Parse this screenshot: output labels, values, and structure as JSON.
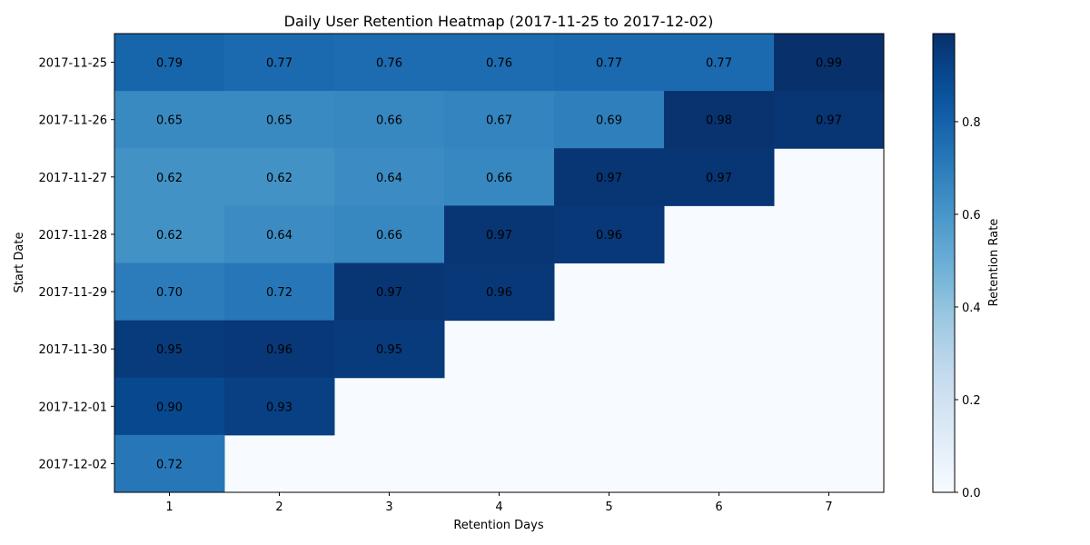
{
  "chart_data": {
    "type": "heatmap",
    "title": "Daily User Retention Heatmap (2017-11-25 to 2017-12-02)",
    "xlabel": "Retention Days",
    "ylabel": "Start Date",
    "x_categories": [
      "1",
      "2",
      "3",
      "4",
      "5",
      "6",
      "7"
    ],
    "y_categories": [
      "2017-11-25",
      "2017-11-26",
      "2017-11-27",
      "2017-11-28",
      "2017-11-29",
      "2017-11-30",
      "2017-12-01",
      "2017-12-02"
    ],
    "values": [
      [
        0.79,
        0.77,
        0.76,
        0.76,
        0.77,
        0.77,
        0.99
      ],
      [
        0.65,
        0.65,
        0.66,
        0.67,
        0.69,
        0.98,
        0.97
      ],
      [
        0.62,
        0.62,
        0.64,
        0.66,
        0.97,
        0.97,
        null
      ],
      [
        0.62,
        0.64,
        0.66,
        0.97,
        0.96,
        null,
        null
      ],
      [
        0.7,
        0.72,
        0.97,
        0.96,
        null,
        null,
        null
      ],
      [
        0.95,
        0.96,
        0.95,
        null,
        null,
        null,
        null
      ],
      [
        0.9,
        0.93,
        null,
        null,
        null,
        null,
        null
      ],
      [
        0.72,
        null,
        null,
        null,
        null,
        null,
        null
      ]
    ],
    "value_format": "0.00",
    "colorbar": {
      "label": "Retention Rate",
      "range": [
        0,
        0.99
      ],
      "ticks": [
        "0.0",
        "0.2",
        "0.4",
        "0.6",
        "0.8"
      ],
      "colormap": "Blues"
    },
    "grid": false
  }
}
